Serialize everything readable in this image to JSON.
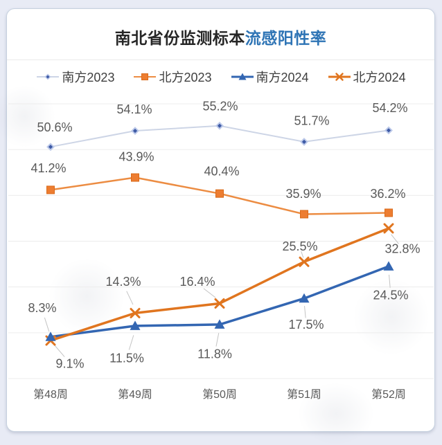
{
  "title": {
    "prefix": "南北省份监测标本",
    "highlight": "流感阳性率",
    "highlight_color": "#2e74b5"
  },
  "chart_data": {
    "type": "line",
    "categories": [
      "第48周",
      "第49周",
      "第50周",
      "第51周",
      "第52周"
    ],
    "series": [
      {
        "name": "南方2023",
        "marker": "diamond",
        "line_color": "#cdd5e6",
        "marker_color": "#3c59a5",
        "values": [
          50.6,
          54.1,
          55.2,
          51.7,
          54.2
        ]
      },
      {
        "name": "北方2023",
        "marker": "square",
        "line_color": "#ec8c42",
        "marker_color": "#ed7d31",
        "values": [
          41.2,
          43.9,
          40.4,
          35.9,
          36.2
        ]
      },
      {
        "name": "南方2024",
        "marker": "triangle",
        "line_color": "#3366b2",
        "marker_color": "#3366b2",
        "values": [
          9.1,
          11.5,
          11.8,
          17.5,
          24.5
        ]
      },
      {
        "name": "北方2024",
        "marker": "x",
        "line_color": "#e0751f",
        "marker_color": "#e0751f",
        "values": [
          8.3,
          14.3,
          16.4,
          25.5,
          32.8
        ]
      }
    ],
    "ylim": [
      0,
      60
    ],
    "grid": "horizontal",
    "grid_step": 10,
    "legend_position": "top",
    "data_labels": true,
    "label_format": "percent-1dp",
    "label_color": "#595959",
    "axis_label_color": "#595959",
    "grid_color": "#ececec"
  }
}
